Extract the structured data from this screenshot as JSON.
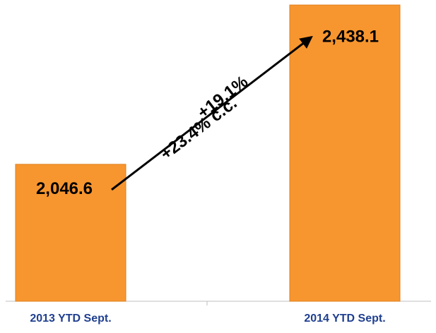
{
  "chart_data": {
    "type": "bar",
    "categories": [
      "2013 YTD Sept.",
      "2014 YTD Sept."
    ],
    "values": [
      2046.6,
      2438.1
    ],
    "value_labels": [
      "2,046.6",
      "2,438.1"
    ],
    "color": "#f7962f",
    "ylim": [
      1710,
      2440
    ],
    "annotations": [
      "+19.1%",
      "+23.4% c.c."
    ]
  }
}
